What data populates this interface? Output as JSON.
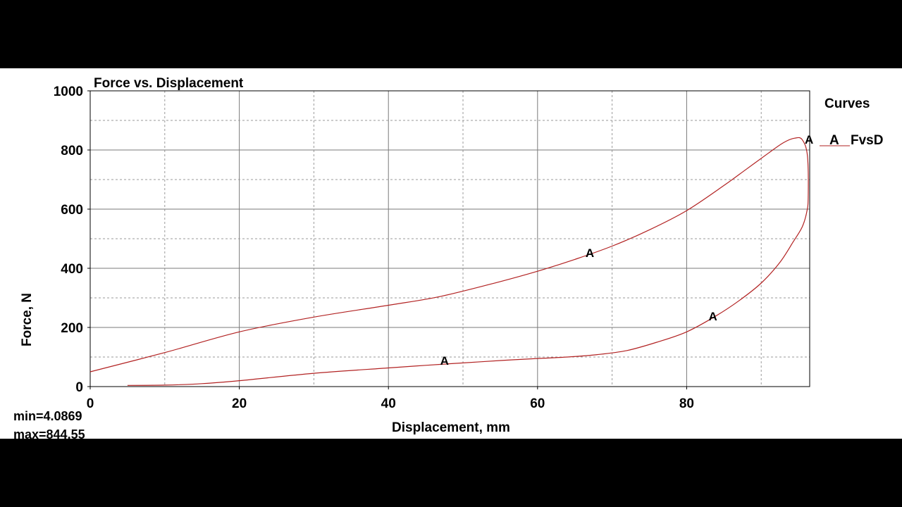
{
  "chart_data": {
    "type": "line",
    "title": "Force vs. Displacement",
    "xlabel": "Displacement, mm",
    "ylabel": "Force, N",
    "xlim": [
      0,
      96.5
    ],
    "ylim": [
      0,
      1000
    ],
    "x_ticks": [
      "0",
      "20",
      "40",
      "60",
      "80"
    ],
    "y_ticks": [
      "0",
      "200",
      "400",
      "600",
      "800",
      "1000"
    ],
    "x_tick_values": [
      0,
      20,
      40,
      60,
      80
    ],
    "y_tick_values": [
      0,
      200,
      400,
      600,
      800,
      1000
    ],
    "x_gridlines": [
      0,
      10,
      20,
      30,
      40,
      50,
      60,
      70,
      80,
      90
    ],
    "y_gridlines": [
      100,
      200,
      300,
      400,
      500,
      600,
      700,
      800,
      900
    ],
    "grid": true,
    "legend": {
      "title": "Curves",
      "position": "right"
    },
    "stats": {
      "min": "min=4.0869",
      "max": "max=844.55"
    },
    "series": [
      {
        "name": "FvsD",
        "marker": "A",
        "color": "#b22222",
        "x": [
          0,
          10,
          20,
          30,
          40,
          47,
          55,
          60,
          65,
          70,
          75,
          80,
          85,
          88,
          91,
          93,
          94.5,
          95.5,
          96.2,
          96.3,
          96.1,
          95.5,
          94.3,
          92.5,
          90,
          87,
          84,
          80,
          76,
          72,
          68,
          64,
          60,
          55,
          50,
          45,
          40,
          30,
          20,
          15,
          10,
          5
        ],
        "y": [
          50,
          115,
          185,
          235,
          275,
          305,
          355,
          390,
          430,
          475,
          530,
          595,
          680,
          735,
          790,
          825,
          840,
          835,
          780,
          640,
          590,
          540,
          490,
          420,
          350,
          290,
          240,
          185,
          150,
          122,
          108,
          100,
          95,
          88,
          80,
          72,
          63,
          45,
          20,
          10,
          5,
          4
        ]
      }
    ],
    "point_labels": [
      {
        "text": "A",
        "x": 67,
        "y": 455
      },
      {
        "text": "A",
        "x": 83.5,
        "y": 240
      },
      {
        "text": "A",
        "x": 47.5,
        "y": 90
      },
      {
        "text": "A",
        "x": 96.4,
        "y": 838
      }
    ]
  }
}
